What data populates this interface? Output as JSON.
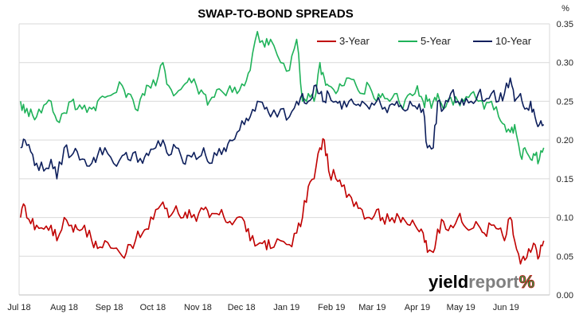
{
  "chart_data": {
    "type": "line",
    "title": "SWAP-TO-BOND SPREADS",
    "y_unit": "%",
    "ylim": [
      0.0,
      0.35
    ],
    "y_ticks": [
      "0.00",
      "0.05",
      "0.10",
      "0.15",
      "0.20",
      "0.25",
      "0.30",
      "0.35"
    ],
    "x_ticks": [
      "Jul 18",
      "Aug 18",
      "Sep 18",
      "Oct 18",
      "Nov 18",
      "Dec 18",
      "Jan 19",
      "Feb 19",
      "Mar 19",
      "Apr 19",
      "May 19",
      "Jun 19"
    ],
    "xlim": [
      "2018-07-01",
      "2019-07-01"
    ],
    "grid": "horizontal",
    "legend_position": "top-right",
    "series": [
      {
        "name": "3-Year",
        "color": "#c00000",
        "points": [
          [
            "2018-07-02",
            0.1
          ],
          [
            "2018-07-05",
            0.115
          ],
          [
            "2018-07-09",
            0.092
          ],
          [
            "2018-07-13",
            0.09
          ],
          [
            "2018-07-18",
            0.085
          ],
          [
            "2018-07-23",
            0.09
          ],
          [
            "2018-07-27",
            0.07
          ],
          [
            "2018-08-01",
            0.1
          ],
          [
            "2018-08-06",
            0.09
          ],
          [
            "2018-08-10",
            0.085
          ],
          [
            "2018-08-15",
            0.09
          ],
          [
            "2018-08-20",
            0.07
          ],
          [
            "2018-08-24",
            0.06
          ],
          [
            "2018-08-29",
            0.07
          ],
          [
            "2018-09-04",
            0.06
          ],
          [
            "2018-09-10",
            0.05
          ],
          [
            "2018-09-14",
            0.065
          ],
          [
            "2018-09-19",
            0.07
          ],
          [
            "2018-09-24",
            0.08
          ],
          [
            "2018-09-28",
            0.085
          ],
          [
            "2018-10-03",
            0.11
          ],
          [
            "2018-10-08",
            0.12
          ],
          [
            "2018-10-12",
            0.1
          ],
          [
            "2018-10-17",
            0.115
          ],
          [
            "2018-10-22",
            0.1
          ],
          [
            "2018-10-26",
            0.11
          ],
          [
            "2018-10-31",
            0.095
          ],
          [
            "2018-11-05",
            0.11
          ],
          [
            "2018-11-09",
            0.1
          ],
          [
            "2018-11-14",
            0.105
          ],
          [
            "2018-11-19",
            0.1
          ],
          [
            "2018-11-23",
            0.095
          ],
          [
            "2018-11-28",
            0.1
          ],
          [
            "2018-12-03",
            0.095
          ],
          [
            "2018-12-07",
            0.07
          ],
          [
            "2018-12-12",
            0.065
          ],
          [
            "2018-12-17",
            0.07
          ],
          [
            "2018-12-21",
            0.06
          ],
          [
            "2018-12-28",
            0.07
          ],
          [
            "2019-01-03",
            0.065
          ],
          [
            "2019-01-08",
            0.08
          ],
          [
            "2019-01-12",
            0.1
          ],
          [
            "2019-01-16",
            0.14
          ],
          [
            "2019-01-20",
            0.15
          ],
          [
            "2019-01-24",
            0.19
          ],
          [
            "2019-01-27",
            0.2
          ],
          [
            "2019-01-30",
            0.16
          ],
          [
            "2019-02-04",
            0.15
          ],
          [
            "2019-02-08",
            0.14
          ],
          [
            "2019-02-13",
            0.13
          ],
          [
            "2019-02-18",
            0.12
          ],
          [
            "2019-02-22",
            0.11
          ],
          [
            "2019-02-27",
            0.1
          ],
          [
            "2019-03-04",
            0.11
          ],
          [
            "2019-03-08",
            0.1
          ],
          [
            "2019-03-13",
            0.095
          ],
          [
            "2019-03-18",
            0.105
          ],
          [
            "2019-03-22",
            0.1
          ],
          [
            "2019-03-27",
            0.09
          ],
          [
            "2019-04-01",
            0.085
          ],
          [
            "2019-04-05",
            0.08
          ],
          [
            "2019-04-08",
            0.055
          ],
          [
            "2019-04-12",
            0.055
          ],
          [
            "2019-04-15",
            0.085
          ],
          [
            "2019-04-19",
            0.095
          ],
          [
            "2019-04-24",
            0.09
          ],
          [
            "2019-04-29",
            0.1
          ],
          [
            "2019-05-03",
            0.09
          ],
          [
            "2019-05-08",
            0.085
          ],
          [
            "2019-05-13",
            0.09
          ],
          [
            "2019-05-17",
            0.08
          ],
          [
            "2019-05-22",
            0.09
          ],
          [
            "2019-05-27",
            0.085
          ],
          [
            "2019-05-31",
            0.07
          ],
          [
            "2019-06-04",
            0.1
          ],
          [
            "2019-06-07",
            0.07
          ],
          [
            "2019-06-11",
            0.04
          ],
          [
            "2019-06-14",
            0.045
          ],
          [
            "2019-06-18",
            0.055
          ],
          [
            "2019-06-21",
            0.065
          ],
          [
            "2019-06-24",
            0.05
          ],
          [
            "2019-06-27",
            0.07
          ]
        ]
      },
      {
        "name": "5-Year",
        "color": "#1fb259",
        "points": [
          [
            "2018-07-02",
            0.25
          ],
          [
            "2018-07-05",
            0.235
          ],
          [
            "2018-07-09",
            0.24
          ],
          [
            "2018-07-13",
            0.23
          ],
          [
            "2018-07-18",
            0.245
          ],
          [
            "2018-07-23",
            0.25
          ],
          [
            "2018-07-27",
            0.225
          ],
          [
            "2018-08-01",
            0.235
          ],
          [
            "2018-08-06",
            0.25
          ],
          [
            "2018-08-10",
            0.24
          ],
          [
            "2018-08-15",
            0.245
          ],
          [
            "2018-08-20",
            0.24
          ],
          [
            "2018-08-24",
            0.25
          ],
          [
            "2018-08-29",
            0.255
          ],
          [
            "2018-09-04",
            0.26
          ],
          [
            "2018-09-10",
            0.27
          ],
          [
            "2018-09-14",
            0.26
          ],
          [
            "2018-09-19",
            0.24
          ],
          [
            "2018-09-24",
            0.26
          ],
          [
            "2018-09-28",
            0.27
          ],
          [
            "2018-10-03",
            0.27
          ],
          [
            "2018-10-08",
            0.3
          ],
          [
            "2018-10-12",
            0.27
          ],
          [
            "2018-10-17",
            0.26
          ],
          [
            "2018-10-22",
            0.27
          ],
          [
            "2018-10-26",
            0.28
          ],
          [
            "2018-10-31",
            0.27
          ],
          [
            "2018-11-05",
            0.26
          ],
          [
            "2018-11-09",
            0.25
          ],
          [
            "2018-11-14",
            0.265
          ],
          [
            "2018-11-19",
            0.26
          ],
          [
            "2018-11-23",
            0.27
          ],
          [
            "2018-11-28",
            0.26
          ],
          [
            "2018-12-03",
            0.27
          ],
          [
            "2018-12-07",
            0.29
          ],
          [
            "2018-12-12",
            0.34
          ],
          [
            "2018-12-17",
            0.32
          ],
          [
            "2018-12-21",
            0.33
          ],
          [
            "2018-12-28",
            0.3
          ],
          [
            "2019-01-03",
            0.29
          ],
          [
            "2019-01-08",
            0.33
          ],
          [
            "2019-01-12",
            0.25
          ],
          [
            "2019-01-16",
            0.26
          ],
          [
            "2019-01-20",
            0.25
          ],
          [
            "2019-01-24",
            0.3
          ],
          [
            "2019-01-27",
            0.28
          ],
          [
            "2019-01-30",
            0.27
          ],
          [
            "2019-02-04",
            0.26
          ],
          [
            "2019-02-08",
            0.27
          ],
          [
            "2019-02-13",
            0.28
          ],
          [
            "2019-02-18",
            0.27
          ],
          [
            "2019-02-22",
            0.26
          ],
          [
            "2019-02-27",
            0.27
          ],
          [
            "2019-03-04",
            0.25
          ],
          [
            "2019-03-08",
            0.26
          ],
          [
            "2019-03-13",
            0.25
          ],
          [
            "2019-03-18",
            0.26
          ],
          [
            "2019-03-22",
            0.24
          ],
          [
            "2019-03-27",
            0.26
          ],
          [
            "2019-04-01",
            0.27
          ],
          [
            "2019-04-05",
            0.25
          ],
          [
            "2019-04-08",
            0.25
          ],
          [
            "2019-04-12",
            0.25
          ],
          [
            "2019-04-15",
            0.26
          ],
          [
            "2019-04-19",
            0.24
          ],
          [
            "2019-04-24",
            0.255
          ],
          [
            "2019-04-29",
            0.25
          ],
          [
            "2019-05-03",
            0.25
          ],
          [
            "2019-05-08",
            0.26
          ],
          [
            "2019-05-13",
            0.25
          ],
          [
            "2019-05-17",
            0.24
          ],
          [
            "2019-05-22",
            0.25
          ],
          [
            "2019-05-27",
            0.23
          ],
          [
            "2019-05-31",
            0.22
          ],
          [
            "2019-06-04",
            0.21
          ],
          [
            "2019-06-07",
            0.22
          ],
          [
            "2019-06-11",
            0.18
          ],
          [
            "2019-06-14",
            0.19
          ],
          [
            "2019-06-18",
            0.175
          ],
          [
            "2019-06-21",
            0.18
          ],
          [
            "2019-06-24",
            0.175
          ],
          [
            "2019-06-27",
            0.19
          ]
        ]
      },
      {
        "name": "10-Year",
        "color": "#0d1f5c",
        "points": [
          [
            "2018-07-02",
            0.19
          ],
          [
            "2018-07-05",
            0.2
          ],
          [
            "2018-07-09",
            0.185
          ],
          [
            "2018-07-13",
            0.17
          ],
          [
            "2018-07-18",
            0.16
          ],
          [
            "2018-07-23",
            0.175
          ],
          [
            "2018-07-27",
            0.15
          ],
          [
            "2018-08-01",
            0.19
          ],
          [
            "2018-08-06",
            0.18
          ],
          [
            "2018-08-10",
            0.185
          ],
          [
            "2018-08-15",
            0.175
          ],
          [
            "2018-08-20",
            0.17
          ],
          [
            "2018-08-24",
            0.18
          ],
          [
            "2018-08-29",
            0.19
          ],
          [
            "2018-09-04",
            0.17
          ],
          [
            "2018-09-10",
            0.18
          ],
          [
            "2018-09-14",
            0.175
          ],
          [
            "2018-09-19",
            0.185
          ],
          [
            "2018-09-24",
            0.17
          ],
          [
            "2018-09-28",
            0.18
          ],
          [
            "2018-10-03",
            0.19
          ],
          [
            "2018-10-08",
            0.2
          ],
          [
            "2018-10-12",
            0.18
          ],
          [
            "2018-10-17",
            0.19
          ],
          [
            "2018-10-22",
            0.17
          ],
          [
            "2018-10-26",
            0.18
          ],
          [
            "2018-10-31",
            0.175
          ],
          [
            "2018-11-05",
            0.19
          ],
          [
            "2018-11-09",
            0.17
          ],
          [
            "2018-11-14",
            0.18
          ],
          [
            "2018-11-19",
            0.19
          ],
          [
            "2018-11-23",
            0.2
          ],
          [
            "2018-11-28",
            0.21
          ],
          [
            "2018-12-03",
            0.22
          ],
          [
            "2018-12-07",
            0.23
          ],
          [
            "2018-12-12",
            0.25
          ],
          [
            "2018-12-17",
            0.24
          ],
          [
            "2018-12-21",
            0.23
          ],
          [
            "2018-12-28",
            0.24
          ],
          [
            "2019-01-03",
            0.23
          ],
          [
            "2019-01-08",
            0.25
          ],
          [
            "2019-01-12",
            0.26
          ],
          [
            "2019-01-16",
            0.25
          ],
          [
            "2019-01-20",
            0.27
          ],
          [
            "2019-01-24",
            0.26
          ],
          [
            "2019-01-27",
            0.25
          ],
          [
            "2019-01-30",
            0.26
          ],
          [
            "2019-02-04",
            0.25
          ],
          [
            "2019-02-08",
            0.24
          ],
          [
            "2019-02-13",
            0.25
          ],
          [
            "2019-02-18",
            0.245
          ],
          [
            "2019-02-22",
            0.25
          ],
          [
            "2019-02-27",
            0.24
          ],
          [
            "2019-03-04",
            0.25
          ],
          [
            "2019-03-08",
            0.24
          ],
          [
            "2019-03-13",
            0.245
          ],
          [
            "2019-03-18",
            0.25
          ],
          [
            "2019-03-22",
            0.24
          ],
          [
            "2019-03-27",
            0.25
          ],
          [
            "2019-04-01",
            0.24
          ],
          [
            "2019-04-05",
            0.24
          ],
          [
            "2019-04-08",
            0.19
          ],
          [
            "2019-04-12",
            0.19
          ],
          [
            "2019-04-15",
            0.25
          ],
          [
            "2019-04-19",
            0.24
          ],
          [
            "2019-04-24",
            0.26
          ],
          [
            "2019-04-29",
            0.25
          ],
          [
            "2019-05-03",
            0.245
          ],
          [
            "2019-05-08",
            0.25
          ],
          [
            "2019-05-13",
            0.26
          ],
          [
            "2019-05-17",
            0.25
          ],
          [
            "2019-05-22",
            0.26
          ],
          [
            "2019-05-27",
            0.25
          ],
          [
            "2019-05-31",
            0.26
          ],
          [
            "2019-06-04",
            0.28
          ],
          [
            "2019-06-07",
            0.25
          ],
          [
            "2019-06-11",
            0.26
          ],
          [
            "2019-06-14",
            0.24
          ],
          [
            "2019-06-18",
            0.25
          ],
          [
            "2019-06-21",
            0.23
          ],
          [
            "2019-06-24",
            0.22
          ],
          [
            "2019-06-27",
            0.22
          ]
        ]
      }
    ]
  },
  "brand": {
    "logo_text_1": "yield",
    "logo_text_2": "report",
    "logo_symbol": "%",
    "color_dark": "#000000",
    "color_gray": "#7f7f7f",
    "color_green": "#1fb259",
    "color_red": "#c00000"
  }
}
